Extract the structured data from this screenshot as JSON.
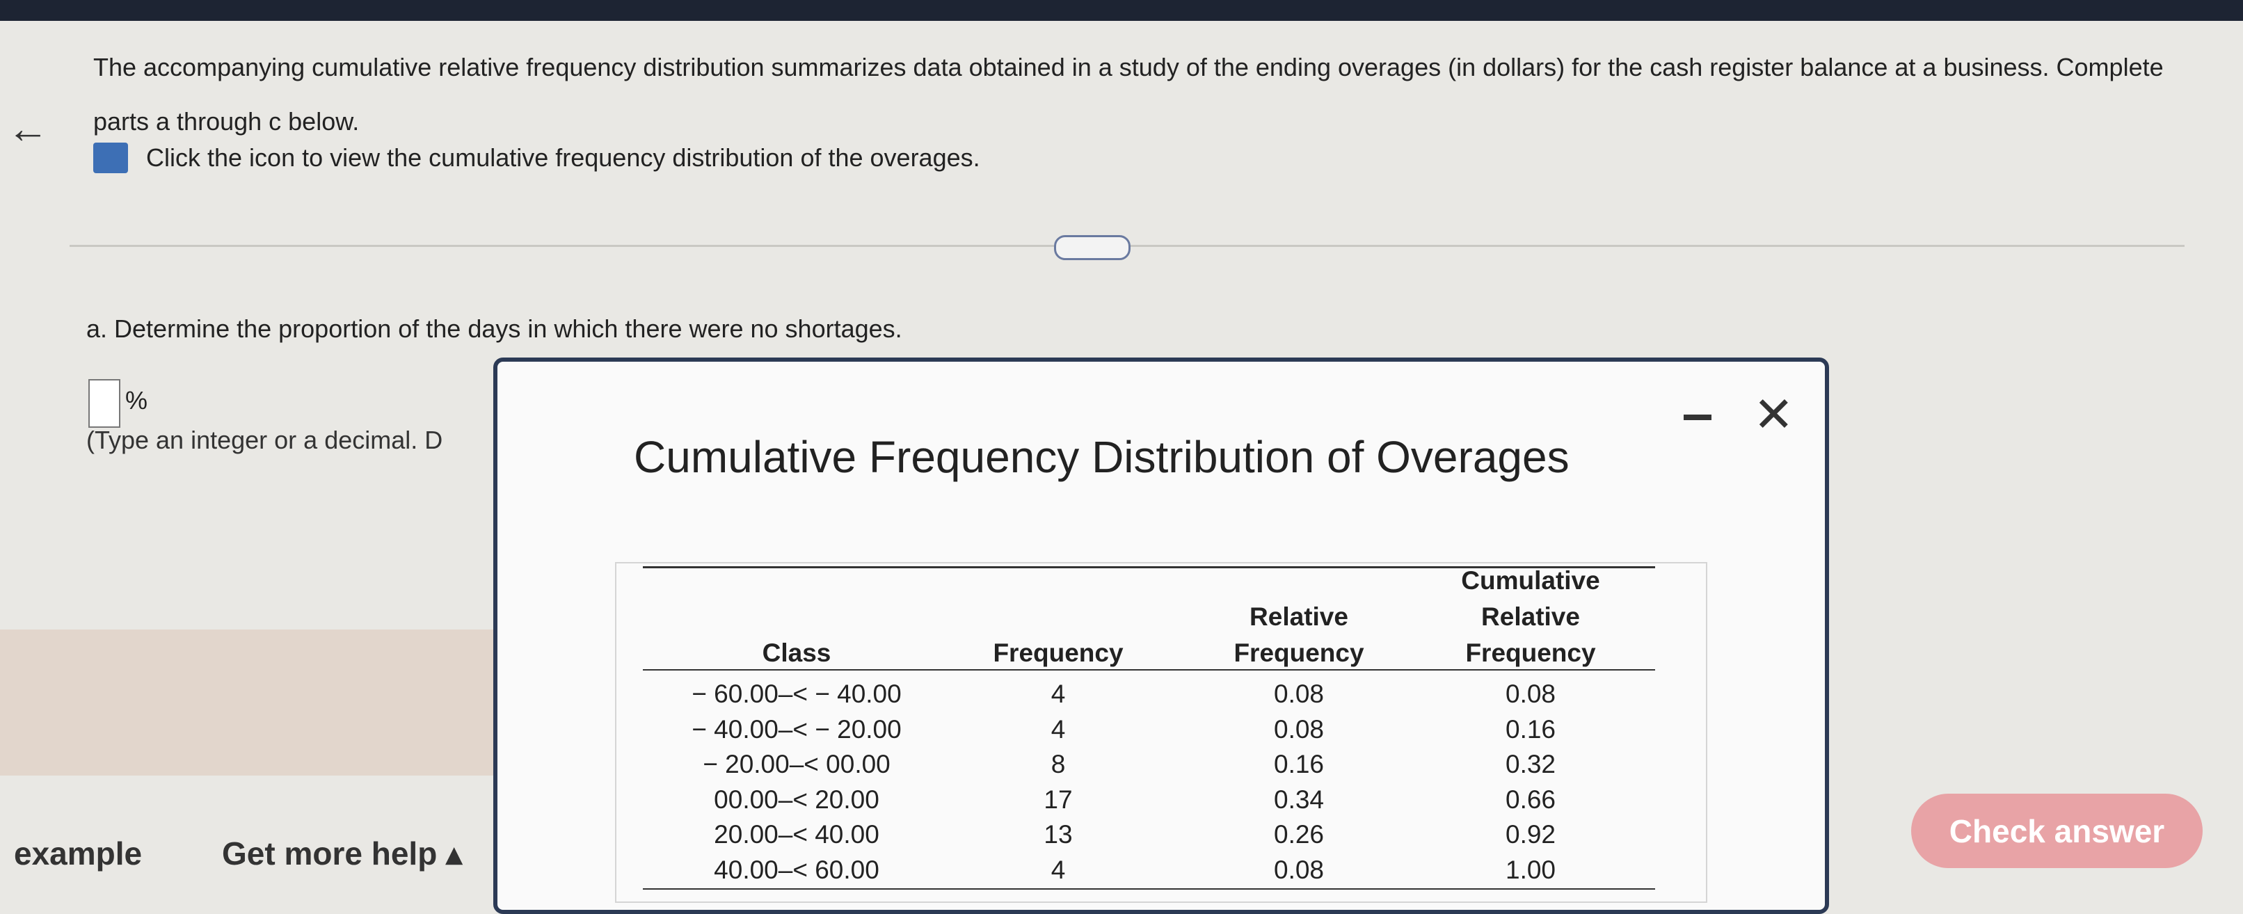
{
  "question": {
    "text": "The accompanying cumulative relative frequency distribution summarizes data obtained in a study of the ending overages (in dollars) for the cash register balance at a business. Complete parts a through c below.",
    "icon_text": "Click the icon to view the cumulative frequency distribution of the overages."
  },
  "part_a": {
    "text": "a. Determine the proportion of the days in which there were no shortages.",
    "unit": "%",
    "hint": "(Type an integer or a decimal. D"
  },
  "popup": {
    "title": "Cumulative Frequency Distribution of Overages",
    "table": {
      "headers": [
        [
          "Class"
        ],
        [
          "Frequency"
        ],
        [
          "Relative",
          "Frequency"
        ],
        [
          "Cumulative",
          "Relative",
          "Frequency"
        ]
      ],
      "rows": [
        [
          "− 60.00–< − 40.00",
          "4",
          "0.08",
          "0.08"
        ],
        [
          "− 40.00–< − 20.00",
          "4",
          "0.08",
          "0.16"
        ],
        [
          "− 20.00–< 00.00",
          "8",
          "0.16",
          "0.32"
        ],
        [
          "00.00–< 20.00",
          "17",
          "0.34",
          "0.66"
        ],
        [
          "20.00–< 40.00",
          "13",
          "0.26",
          "0.92"
        ],
        [
          "40.00–< 60.00",
          "4",
          "0.08",
          "1.00"
        ]
      ]
    }
  },
  "footer": {
    "example": "example",
    "help": "Get more help",
    "check": "Check answer"
  }
}
